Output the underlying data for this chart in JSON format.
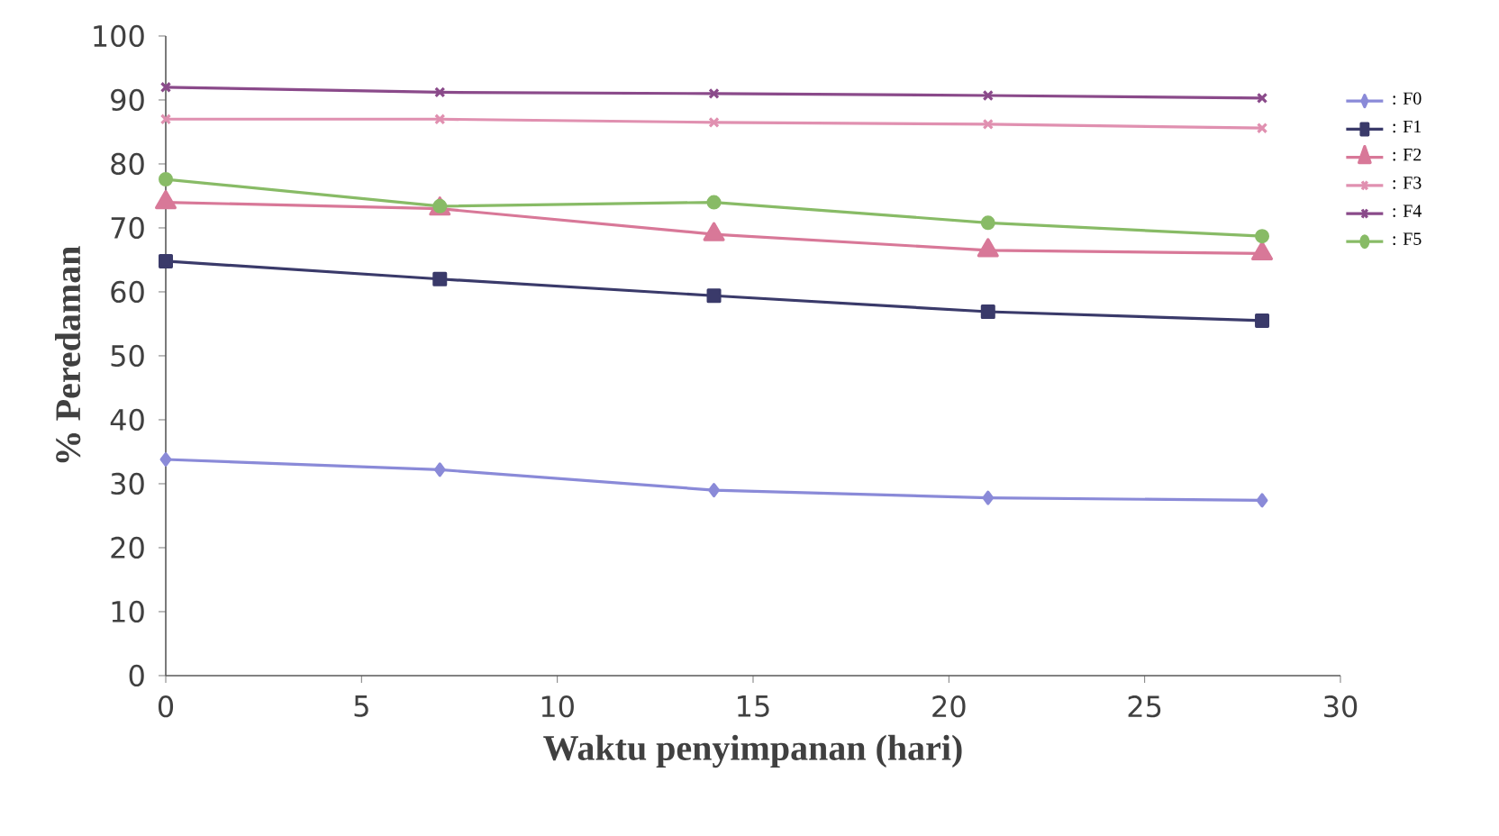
{
  "chart_data": {
    "type": "line",
    "xlabel": "Waktu penyimpanan (hari)",
    "ylabel": "% Peredaman",
    "xlim": [
      0,
      30
    ],
    "xticks": [
      0,
      5,
      10,
      15,
      20,
      25,
      30
    ],
    "ylim": [
      0,
      100
    ],
    "yticks": [
      0,
      10,
      20,
      30,
      40,
      50,
      60,
      70,
      80,
      90,
      100
    ],
    "grid": false,
    "legend": "right",
    "x": [
      0,
      7,
      14,
      21,
      28
    ],
    "series": [
      {
        "name": ": F0",
        "color": "#8a8ad8",
        "marker": "diamond",
        "values": [
          33.8,
          32.2,
          29.0,
          27.8,
          27.4
        ]
      },
      {
        "name": ": F1",
        "color": "#3a3a6a",
        "marker": "square",
        "values": [
          64.8,
          62.0,
          59.4,
          56.9,
          55.5
        ]
      },
      {
        "name": ": F2",
        "color": "#d87898",
        "marker": "triangle",
        "values": [
          74.0,
          73.0,
          69.0,
          66.5,
          66.0
        ]
      },
      {
        "name": ": F3",
        "color": "#e090b0",
        "marker": "cross",
        "values": [
          87.0,
          87.0,
          86.5,
          86.2,
          85.6
        ]
      },
      {
        "name": ": F4",
        "color": "#8a4a8a",
        "marker": "cross",
        "values": [
          92.0,
          91.2,
          91.0,
          90.7,
          90.3
        ]
      },
      {
        "name": ": F5",
        "color": "#88bb66",
        "marker": "circle",
        "values": [
          77.6,
          73.4,
          74.0,
          70.8,
          68.7
        ]
      }
    ]
  }
}
